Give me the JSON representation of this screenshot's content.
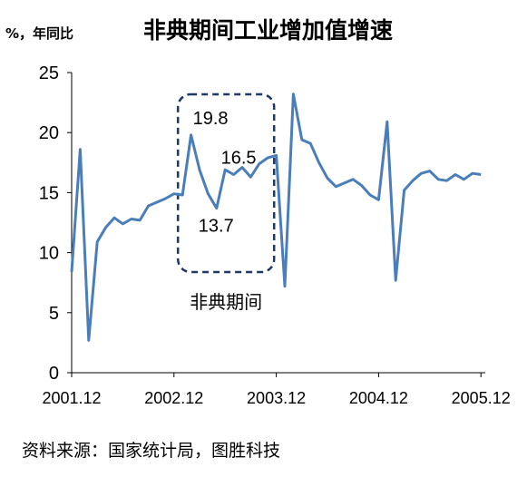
{
  "chart_data": {
    "type": "line",
    "title": "非典期间工业增加值增速",
    "ylabel": "%，年同比",
    "xlabel": "",
    "ylim": [
      0,
      25
    ],
    "yticks": [
      "0",
      "5",
      "10",
      "15",
      "20",
      "25"
    ],
    "xticks": [
      {
        "label": "2001.12",
        "index": 0
      },
      {
        "label": "2002.12",
        "index": 12
      },
      {
        "label": "2003.12",
        "index": 24
      },
      {
        "label": "2004.12",
        "index": 36
      },
      {
        "label": "2005.12",
        "index": 48
      }
    ],
    "grid": false,
    "legend": "none",
    "line_color": "#4a7ebb",
    "values": [
      8.4,
      18.6,
      2.7,
      10.9,
      12.1,
      12.9,
      12.4,
      12.8,
      12.7,
      13.9,
      14.2,
      14.5,
      14.9,
      14.8,
      19.8,
      16.9,
      14.9,
      13.7,
      16.9,
      16.5,
      17.1,
      16.3,
      17.4,
      17.9,
      18.1,
      7.2,
      23.2,
      19.4,
      19.1,
      17.5,
      16.2,
      15.5,
      15.8,
      16.1,
      15.6,
      14.8,
      14.4,
      20.9,
      7.7,
      15.2,
      16.0,
      16.6,
      16.8,
      16.1,
      16.0,
      16.5,
      16.1,
      16.6,
      16.5
    ],
    "annotations": [
      {
        "text": "19.8",
        "index": 14
      },
      {
        "text": "16.5",
        "index": 19
      },
      {
        "text": "13.7",
        "index": 17
      }
    ],
    "highlight_box": {
      "label": "非典期间",
      "start_index": 13,
      "end_index": 23
    }
  },
  "source": "资料来源：国家统计局，图胜科技"
}
